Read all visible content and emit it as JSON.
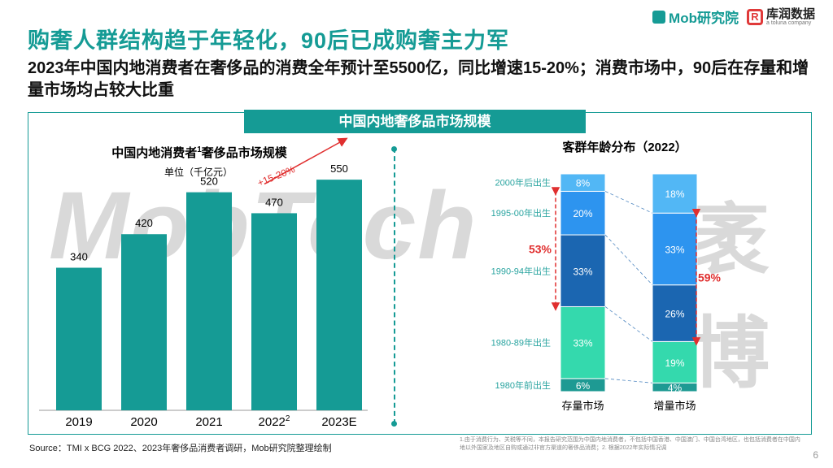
{
  "title": "购奢人群结构趋于年轻化，90后已成购奢主力军",
  "subtitle": "2023年中国内地消费者在奢侈品的消费全年预计至5500亿，同比增速15-20%；消费市场中，90后在存量和增量市场均占较大比重",
  "logos": {
    "mob": "Mob研究院",
    "kx_cn": "库润数据",
    "kx_en": "a toluna company",
    "kx_mark": "R"
  },
  "panel_title": "中国内地奢侈品市场规模",
  "watermark": {
    "latin": "MobTech",
    "cn": "袤博"
  },
  "colors": {
    "teal": "#159b95",
    "red": "#e02f2f"
  },
  "chart_data": [
    {
      "type": "bar",
      "title": "中国内地消费者",
      "title_sup": "1",
      "title_rest": "奢侈品市场规模",
      "unit": "单位（千亿元）",
      "categories": [
        "2019",
        "2020",
        "2021",
        "2022",
        "2023E"
      ],
      "category_sups": [
        "",
        "",
        "",
        "2",
        ""
      ],
      "values": [
        340,
        420,
        520,
        470,
        550
      ],
      "ylim": [
        0,
        620
      ],
      "growth_annotation": "+15-20%"
    },
    {
      "type": "bar",
      "stacked": true,
      "title": "客群年龄分布（2022）",
      "categories": [
        "存量市场",
        "增量市场"
      ],
      "segment_labels": [
        "1980年前出生",
        "1980-89年出生",
        "1990-94年出生",
        "1995-00年出生",
        "2000年后出生"
      ],
      "series": [
        {
          "segment": "1980年前出生",
          "values": [
            6,
            4
          ],
          "color": "#1e9a93"
        },
        {
          "segment": "1980-89年出生",
          "values": [
            33,
            19
          ],
          "color": "#34d9ad"
        },
        {
          "segment": "1990-94年出生",
          "values": [
            33,
            26
          ],
          "color": "#1b66b1"
        },
        {
          "segment": "1995-00年出生",
          "values": [
            20,
            33
          ],
          "color": "#2d94ef"
        },
        {
          "segment": "2000年后出生",
          "values": [
            8,
            18
          ],
          "color": "#52b7f5"
        }
      ],
      "bracket_labels": [
        "53%",
        "59%"
      ]
    }
  ],
  "source": "Source：TMI x BCG 2022、2023年奢侈品消费者调研，Mob研究院整理绘制",
  "footnote": "1.由于消费行为、关税等不同，本报告研究范围为中国内地消费者，不包括中国香港、中国澳门、中国台湾地区，也包括消费者在中国内地以外国家及地区自购或通过非官方渠道的奢侈品消费；2. 根据2022年实际情况调",
  "page_number": "6"
}
